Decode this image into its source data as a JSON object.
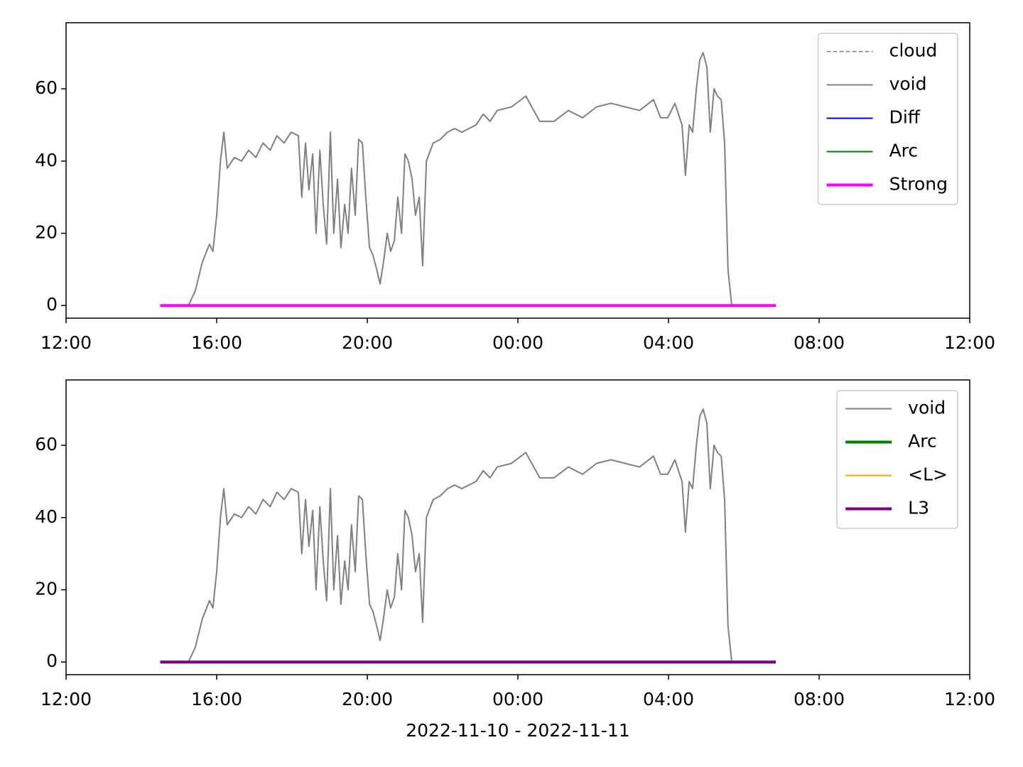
{
  "chart_data": [
    {
      "type": "line",
      "xlim": [
        12,
        36
      ],
      "xticks": [
        {
          "value": 12,
          "label": "12:00"
        },
        {
          "value": 16,
          "label": "16:00"
        },
        {
          "value": 20,
          "label": "20:00"
        },
        {
          "value": 24,
          "label": "00:00"
        },
        {
          "value": 28,
          "label": "04:00"
        },
        {
          "value": 32,
          "label": "08:00"
        },
        {
          "value": 36,
          "label": "12:00"
        }
      ],
      "ylim": [
        -3.5,
        78.3
      ],
      "yticks": [
        0,
        20,
        40,
        60
      ],
      "legend": "upper right",
      "series": [
        {
          "name": "cloud",
          "color": "#808080",
          "width": 1.5,
          "dash": true,
          "x": [
            14.5,
            30.85
          ],
          "values": [
            0,
            0
          ]
        },
        {
          "name": "void",
          "color": "#808080",
          "width": 2,
          "dash": false,
          "x": [
            15.25,
            15.43,
            15.62,
            15.81,
            15.9,
            16.0,
            16.1,
            16.19,
            16.28,
            16.47,
            16.66,
            16.85,
            17.04,
            17.23,
            17.42,
            17.6,
            17.79,
            17.98,
            18.17,
            18.26,
            18.36,
            18.45,
            18.55,
            18.64,
            18.74,
            18.83,
            18.92,
            19.02,
            19.11,
            19.21,
            19.3,
            19.4,
            19.49,
            19.58,
            19.68,
            19.77,
            19.87,
            19.96,
            20.06,
            20.15,
            20.25,
            20.34,
            20.43,
            20.53,
            20.62,
            20.72,
            20.81,
            20.91,
            21.0,
            21.09,
            21.19,
            21.28,
            21.38,
            21.47,
            21.57,
            21.75,
            21.94,
            22.13,
            22.32,
            22.51,
            22.7,
            22.89,
            23.08,
            23.26,
            23.45,
            23.83,
            24.21,
            24.58,
            24.96,
            25.34,
            25.72,
            26.09,
            26.47,
            26.85,
            27.23,
            27.6,
            27.79,
            27.98,
            28.17,
            28.36,
            28.45,
            28.55,
            28.64,
            28.74,
            28.83,
            28.92,
            29.02,
            29.11,
            29.21,
            29.3,
            29.4,
            29.49,
            29.58,
            29.68
          ],
          "values": [
            0,
            4,
            12,
            17,
            15,
            25,
            40,
            48,
            38,
            41,
            40,
            43,
            41,
            45,
            43,
            47,
            45,
            48,
            47,
            30,
            45,
            32,
            42,
            20,
            43,
            28,
            17,
            48,
            20,
            35,
            16,
            28,
            20,
            38,
            25,
            46,
            45,
            30,
            16,
            14,
            10,
            6,
            12,
            20,
            15,
            18,
            30,
            20,
            42,
            40,
            35,
            25,
            30,
            11,
            40,
            45,
            46,
            48,
            49,
            48,
            49,
            50,
            53,
            51,
            54,
            55,
            58,
            51,
            51,
            54,
            52,
            55,
            56,
            55,
            54,
            57,
            52,
            52,
            56,
            50,
            36,
            50,
            48,
            60,
            68,
            70,
            66,
            48,
            60,
            58,
            57,
            45,
            10,
            0
          ]
        },
        {
          "name": "Diff",
          "color": "#0000ff",
          "width": 2,
          "dash": false,
          "x": [
            14.5,
            30.85
          ],
          "values": [
            0,
            0
          ]
        },
        {
          "name": "Arc",
          "color": "#008000",
          "width": 2,
          "dash": false,
          "x": [
            14.5,
            30.85
          ],
          "values": [
            0,
            0
          ]
        },
        {
          "name": "Strong",
          "color": "#ff00ff",
          "width": 4,
          "dash": false,
          "x": [
            14.5,
            30.85
          ],
          "values": [
            0,
            0
          ]
        }
      ]
    },
    {
      "type": "line",
      "x_label": "2022-11-10 - 2022-11-11",
      "xlim": [
        12,
        36
      ],
      "xticks": [
        {
          "value": 12,
          "label": "12:00"
        },
        {
          "value": 16,
          "label": "16:00"
        },
        {
          "value": 20,
          "label": "20:00"
        },
        {
          "value": 24,
          "label": "00:00"
        },
        {
          "value": 28,
          "label": "04:00"
        },
        {
          "value": 32,
          "label": "08:00"
        },
        {
          "value": 36,
          "label": "12:00"
        }
      ],
      "ylim": [
        -3.5,
        78.1
      ],
      "yticks": [
        0,
        20,
        40,
        60
      ],
      "legend": "upper right",
      "series": [
        {
          "name": "void",
          "color": "#808080",
          "width": 2,
          "dash": false,
          "x": [
            15.25,
            15.43,
            15.62,
            15.81,
            15.9,
            16.0,
            16.1,
            16.19,
            16.28,
            16.47,
            16.66,
            16.85,
            17.04,
            17.23,
            17.42,
            17.6,
            17.79,
            17.98,
            18.17,
            18.26,
            18.36,
            18.45,
            18.55,
            18.64,
            18.74,
            18.83,
            18.92,
            19.02,
            19.11,
            19.21,
            19.3,
            19.4,
            19.49,
            19.58,
            19.68,
            19.77,
            19.87,
            19.96,
            20.06,
            20.15,
            20.25,
            20.34,
            20.43,
            20.53,
            20.62,
            20.72,
            20.81,
            20.91,
            21.0,
            21.09,
            21.19,
            21.28,
            21.38,
            21.47,
            21.57,
            21.75,
            21.94,
            22.13,
            22.32,
            22.51,
            22.7,
            22.89,
            23.08,
            23.26,
            23.45,
            23.83,
            24.21,
            24.58,
            24.96,
            25.34,
            25.72,
            26.09,
            26.47,
            26.85,
            27.23,
            27.6,
            27.79,
            27.98,
            28.17,
            28.36,
            28.45,
            28.55,
            28.64,
            28.74,
            28.83,
            28.92,
            29.02,
            29.11,
            29.21,
            29.3,
            29.4,
            29.49,
            29.58,
            29.68
          ],
          "values": [
            0,
            4,
            12,
            17,
            15,
            25,
            40,
            48,
            38,
            41,
            40,
            43,
            41,
            45,
            43,
            47,
            45,
            48,
            47,
            30,
            45,
            32,
            42,
            20,
            43,
            28,
            17,
            48,
            20,
            35,
            16,
            28,
            20,
            38,
            25,
            46,
            45,
            30,
            16,
            14,
            10,
            6,
            12,
            20,
            15,
            18,
            30,
            20,
            42,
            40,
            35,
            25,
            30,
            11,
            40,
            45,
            46,
            48,
            49,
            48,
            49,
            50,
            53,
            51,
            54,
            55,
            58,
            51,
            51,
            54,
            52,
            55,
            56,
            55,
            54,
            57,
            52,
            52,
            56,
            50,
            36,
            50,
            48,
            60,
            68,
            70,
            66,
            48,
            60,
            58,
            57,
            45,
            10,
            0
          ]
        },
        {
          "name": "Arc",
          "color": "#008000",
          "width": 4,
          "dash": false,
          "x": [
            14.5,
            30.85
          ],
          "values": [
            0,
            0
          ]
        },
        {
          "name": "<L>",
          "color": "#ffa500",
          "width": 2,
          "dash": false,
          "x": [
            14.5,
            30.85
          ],
          "values": [
            0,
            0
          ]
        },
        {
          "name": "L3",
          "color": "#800080",
          "width": 4,
          "dash": false,
          "x": [
            14.5,
            30.85
          ],
          "values": [
            0,
            0
          ]
        }
      ]
    }
  ]
}
